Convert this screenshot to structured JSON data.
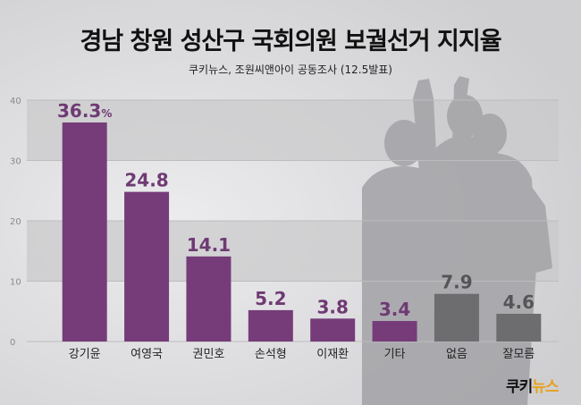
{
  "title": "경남 창원 성산구 국회의원 보궐선거 지지율",
  "subtitle": "쿠키뉴스, 조원씨앤아이 공동조사 (12.5발표)",
  "logo": {
    "main": "쿠키",
    "accent": "뉴스"
  },
  "colors": {
    "candidate_bar": "#763c79",
    "other_bar": "#6d6d70",
    "candidate_label": "#6f3a73",
    "other_label": "#555557",
    "band": "#c9c9cb",
    "grid": "#bdbdbf"
  },
  "chart_data": {
    "type": "bar",
    "title": "경남 창원 성산구 국회의원 보궐선거 지지율",
    "subtitle": "쿠키뉴스, 조원씨앤아이 공동조사 (12.5발표)",
    "categories": [
      "강기윤",
      "여영국",
      "권민호",
      "손석형",
      "이재환",
      "기타",
      "없음",
      "잘모름"
    ],
    "values": [
      36.3,
      24.8,
      14.1,
      5.2,
      3.8,
      3.4,
      7.9,
      4.6
    ],
    "value_labels": [
      "36.3",
      "24.8",
      "14.1",
      "5.2",
      "3.8",
      "3.4",
      "7.9",
      "4.6"
    ],
    "first_label_unit": "%",
    "bar_groups": [
      "candidate",
      "candidate",
      "candidate",
      "candidate",
      "candidate",
      "candidate",
      "other",
      "other"
    ],
    "yticks": [
      "0",
      "10",
      "20",
      "30",
      "40"
    ],
    "ylim": [
      0,
      40
    ],
    "xlabel": "",
    "ylabel": "",
    "grid": true
  }
}
